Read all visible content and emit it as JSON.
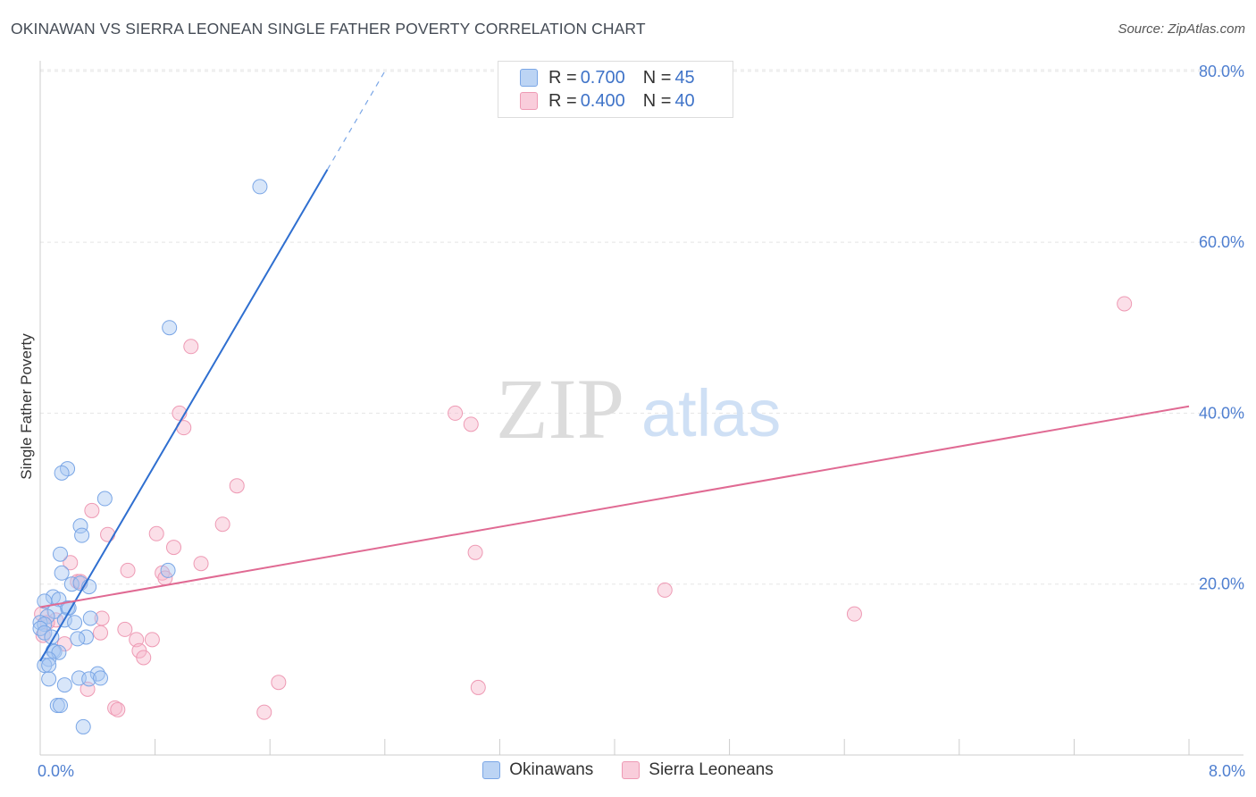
{
  "title": "OKINAWAN VS SIERRA LEONEAN SINGLE FATHER POVERTY CORRELATION CHART",
  "source": "Source: ZipAtlas.com",
  "watermark": {
    "zip": "ZIP",
    "atlas": "atlas"
  },
  "legend": {
    "series1": {
      "r_label": "R = ",
      "r_value": "0.700",
      "n_label": "N = ",
      "n_value": "45"
    },
    "series2": {
      "r_label": "R = ",
      "r_value": "0.400",
      "n_label": "N = ",
      "n_value": "40"
    }
  },
  "bottom_legend": [
    "Okinawans",
    "Sierra Leoneans"
  ],
  "colors": {
    "blue_fill": "#a9c8f2",
    "blue_stroke": "#7aa6e6",
    "blue_line": "#2f6fd0",
    "pink_fill": "#f6b8cb",
    "pink_stroke": "#ee9ab4",
    "pink_line": "#e06a93",
    "grid": "#e5e5e5",
    "tick_text": "#4f7fd0"
  },
  "chart_data": {
    "type": "scatter",
    "title": "OKINAWAN VS SIERRA LEONEAN SINGLE FATHER POVERTY CORRELATION CHART",
    "xlabel": "",
    "ylabel": "Single Father Poverty",
    "xlim": [
      0,
      8
    ],
    "ylim": [
      0,
      80
    ],
    "x_tick_labels": [
      "0.0%",
      "8.0%"
    ],
    "y_ticks": [
      20,
      40,
      60,
      80
    ],
    "y_tick_labels": [
      "20.0%",
      "40.0%",
      "60.0%",
      "80.0%"
    ],
    "series": [
      {
        "name": "Okinawans",
        "r": 0.7,
        "n": 45,
        "trend": {
          "x0": 0.0,
          "y0": 11.0,
          "x1": 2.0,
          "y1": 68.5,
          "dash_to_x": 2.4
        },
        "points": [
          [
            1.53,
            66.5
          ],
          [
            0.9,
            50.0
          ],
          [
            0.19,
            33.5
          ],
          [
            0.15,
            33.0
          ],
          [
            0.45,
            30.0
          ],
          [
            0.28,
            26.8
          ],
          [
            0.29,
            25.7
          ],
          [
            0.14,
            23.5
          ],
          [
            0.89,
            21.6
          ],
          [
            0.15,
            21.3
          ],
          [
            0.22,
            20.0
          ],
          [
            0.28,
            20.1
          ],
          [
            0.34,
            19.7
          ],
          [
            0.09,
            18.5
          ],
          [
            0.13,
            18.2
          ],
          [
            0.03,
            18.0
          ],
          [
            0.19,
            17.2
          ],
          [
            0.2,
            17.2
          ],
          [
            0.1,
            16.8
          ],
          [
            0.05,
            16.2
          ],
          [
            0.35,
            16.0
          ],
          [
            0.17,
            15.8
          ],
          [
            0.24,
            15.5
          ],
          [
            0.0,
            15.5
          ],
          [
            0.03,
            15.3
          ],
          [
            0.0,
            14.8
          ],
          [
            0.03,
            14.3
          ],
          [
            0.08,
            13.8
          ],
          [
            0.32,
            13.8
          ],
          [
            0.26,
            13.6
          ],
          [
            0.09,
            12.2
          ],
          [
            0.1,
            12.1
          ],
          [
            0.13,
            12.0
          ],
          [
            0.06,
            11.2
          ],
          [
            0.03,
            10.5
          ],
          [
            0.06,
            10.5
          ],
          [
            0.4,
            9.5
          ],
          [
            0.27,
            9.0
          ],
          [
            0.34,
            8.9
          ],
          [
            0.42,
            9.0
          ],
          [
            0.06,
            8.9
          ],
          [
            0.17,
            8.2
          ],
          [
            0.12,
            5.8
          ],
          [
            0.14,
            5.8
          ],
          [
            0.3,
            3.3
          ]
        ]
      },
      {
        "name": "Sierra Leoneans",
        "r": 0.4,
        "n": 40,
        "trend": {
          "x0": 0.0,
          "y0": 17.3,
          "x1": 8.0,
          "y1": 40.8
        },
        "points": [
          [
            7.55,
            52.8
          ],
          [
            1.05,
            47.8
          ],
          [
            0.97,
            40.0
          ],
          [
            2.89,
            40.0
          ],
          [
            1.0,
            38.3
          ],
          [
            3.0,
            38.7
          ],
          [
            1.37,
            31.5
          ],
          [
            1.27,
            27.0
          ],
          [
            0.36,
            28.6
          ],
          [
            0.47,
            25.8
          ],
          [
            0.81,
            25.9
          ],
          [
            0.93,
            24.3
          ],
          [
            3.03,
            23.7
          ],
          [
            0.21,
            22.5
          ],
          [
            1.12,
            22.4
          ],
          [
            0.61,
            21.6
          ],
          [
            0.85,
            21.3
          ],
          [
            0.26,
            20.3
          ],
          [
            0.28,
            20.3
          ],
          [
            0.87,
            20.7
          ],
          [
            4.35,
            19.3
          ],
          [
            0.01,
            16.5
          ],
          [
            5.67,
            16.5
          ],
          [
            0.43,
            16.0
          ],
          [
            0.11,
            15.8
          ],
          [
            0.05,
            15.5
          ],
          [
            0.59,
            14.7
          ],
          [
            0.42,
            14.3
          ],
          [
            0.02,
            14.0
          ],
          [
            0.67,
            13.5
          ],
          [
            0.78,
            13.5
          ],
          [
            0.17,
            13.0
          ],
          [
            0.69,
            12.2
          ],
          [
            0.72,
            11.4
          ],
          [
            1.66,
            8.5
          ],
          [
            0.33,
            7.7
          ],
          [
            3.05,
            7.9
          ],
          [
            0.52,
            5.5
          ],
          [
            0.54,
            5.3
          ],
          [
            1.56,
            5.0
          ]
        ]
      }
    ]
  }
}
